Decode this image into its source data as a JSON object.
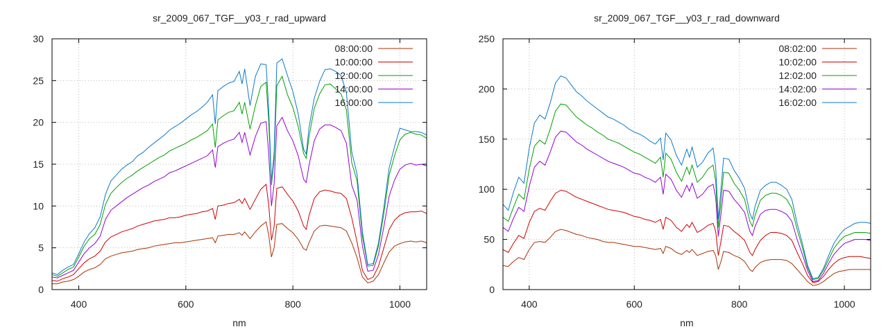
{
  "chart_data": [
    {
      "type": "line",
      "title": "sr_2009_067_TGF__y03_r_rad_upward",
      "xlabel": "nm",
      "ylabel": "",
      "xlim": [
        350,
        1050
      ],
      "ylim": [
        0,
        30
      ],
      "xticks": [
        400,
        600,
        800,
        1000
      ],
      "yticks": [
        0,
        5,
        10,
        15,
        20,
        25,
        30
      ],
      "grid": true,
      "legend_position": "top-right",
      "x": [
        350,
        360,
        370,
        380,
        390,
        400,
        410,
        420,
        430,
        440,
        450,
        460,
        470,
        480,
        490,
        500,
        510,
        520,
        530,
        540,
        550,
        560,
        570,
        580,
        590,
        600,
        610,
        620,
        630,
        640,
        650,
        655,
        660,
        670,
        680,
        690,
        700,
        705,
        710,
        720,
        730,
        740,
        750,
        755,
        760,
        765,
        770,
        780,
        790,
        800,
        810,
        820,
        825,
        830,
        840,
        850,
        860,
        870,
        880,
        890,
        900,
        910,
        920,
        930,
        940,
        950,
        960,
        970,
        980,
        990,
        1000,
        1010,
        1020,
        1030,
        1040,
        1050
      ],
      "series": [
        {
          "name": "08:00:00",
          "color": "#a83200",
          "values": [
            0.7,
            0.7,
            0.9,
            1.0,
            1.2,
            1.6,
            2.1,
            2.4,
            2.6,
            3.0,
            3.7,
            4.0,
            4.2,
            4.4,
            4.5,
            4.6,
            4.8,
            4.9,
            5.0,
            5.2,
            5.3,
            5.4,
            5.5,
            5.6,
            5.6,
            5.7,
            5.8,
            5.9,
            6.0,
            6.1,
            6.2,
            5.6,
            6.4,
            6.5,
            6.6,
            6.6,
            6.8,
            6.5,
            6.9,
            6.1,
            6.9,
            7.6,
            8.1,
            6.5,
            3.9,
            5.0,
            7.8,
            7.9,
            7.3,
            6.8,
            6.0,
            4.9,
            4.7,
            5.6,
            7.0,
            7.6,
            7.7,
            7.6,
            7.5,
            7.4,
            7.0,
            5.6,
            3.8,
            1.5,
            0.8,
            1.0,
            1.8,
            3.2,
            4.5,
            5.2,
            5.5,
            5.7,
            5.8,
            5.7,
            5.8,
            5.6
          ]
        },
        {
          "name": "10:00:00",
          "color": "#cc0000",
          "values": [
            1.1,
            1.0,
            1.3,
            1.5,
            1.8,
            2.5,
            3.2,
            3.7,
            4.0,
            4.6,
            5.7,
            6.3,
            6.6,
            6.9,
            7.1,
            7.3,
            7.6,
            7.8,
            8.0,
            8.2,
            8.3,
            8.4,
            8.6,
            8.6,
            8.7,
            8.9,
            9.0,
            9.1,
            9.3,
            9.4,
            9.7,
            8.4,
            10.0,
            10.1,
            10.3,
            10.4,
            10.8,
            10.3,
            10.9,
            9.6,
            10.8,
            12.0,
            12.6,
            10.1,
            5.9,
            7.5,
            12.1,
            12.3,
            11.4,
            10.6,
            9.4,
            7.6,
            7.2,
            8.8,
            10.9,
            11.7,
            11.9,
            11.8,
            11.6,
            11.5,
            10.9,
            8.6,
            5.7,
            2.3,
            1.2,
            1.5,
            2.8,
            5.0,
            7.2,
            8.3,
            8.9,
            9.2,
            9.3,
            9.3,
            9.4,
            9.1
          ]
        },
        {
          "name": "12:00:00",
          "color": "#00a000",
          "values": [
            1.8,
            1.6,
            2.0,
            2.4,
            2.7,
            3.9,
            5.2,
            6.1,
            6.6,
            7.8,
            10.2,
            11.5,
            12.2,
            12.8,
            13.3,
            13.7,
            14.2,
            14.6,
            15.0,
            15.4,
            15.8,
            16.1,
            16.6,
            16.9,
            17.2,
            17.5,
            17.9,
            18.2,
            18.6,
            19.0,
            19.8,
            17.0,
            20.3,
            20.8,
            21.2,
            21.4,
            22.4,
            21.0,
            22.4,
            19.2,
            22.0,
            24.3,
            24.8,
            20.0,
            12.5,
            15.6,
            24.4,
            25.5,
            23.3,
            21.8,
            19.5,
            16.3,
            15.7,
            18.2,
            21.7,
            23.4,
            24.5,
            24.6,
            24.0,
            23.4,
            21.5,
            15.2,
            13.0,
            6.4,
            2.8,
            2.9,
            5.2,
            9.1,
            13.7,
            16.0,
            17.9,
            18.6,
            18.8,
            18.6,
            18.5,
            18.1
          ]
        },
        {
          "name": "14:00:00",
          "color": "#9400d3",
          "values": [
            1.5,
            1.4,
            1.7,
            2.0,
            2.3,
            3.3,
            4.3,
            5.0,
            5.5,
            6.4,
            8.4,
            9.5,
            10.0,
            10.5,
            11.0,
            11.4,
            11.8,
            12.2,
            12.5,
            12.9,
            13.2,
            13.5,
            14.0,
            14.2,
            14.5,
            14.8,
            15.1,
            15.4,
            15.7,
            16.0,
            16.7,
            14.6,
            17.1,
            17.5,
            17.8,
            18.0,
            18.8,
            17.6,
            18.8,
            16.1,
            18.3,
            19.9,
            20.1,
            16.2,
            10.0,
            12.6,
            19.6,
            20.6,
            19.0,
            17.8,
            16.0,
            13.2,
            12.8,
            14.8,
            17.8,
            19.2,
            19.7,
            19.7,
            19.4,
            19.0,
            17.5,
            12.5,
            10.7,
            5.2,
            2.2,
            2.3,
            4.2,
            7.5,
            11.2,
            13.1,
            14.4,
            14.9,
            15.1,
            14.9,
            15.0,
            14.8
          ]
        },
        {
          "name": "16:00:00",
          "color": "#0a78c8",
          "values": [
            2.0,
            1.8,
            2.3,
            2.7,
            3.0,
            4.3,
            5.7,
            6.7,
            7.4,
            8.7,
            11.4,
            13.0,
            13.7,
            14.4,
            14.9,
            15.3,
            16.0,
            16.4,
            17.0,
            17.5,
            18.0,
            18.5,
            19.1,
            19.5,
            19.9,
            20.4,
            20.9,
            21.3,
            21.8,
            22.4,
            23.3,
            19.8,
            23.8,
            24.3,
            24.7,
            24.9,
            26.1,
            24.6,
            26.4,
            22.0,
            25.5,
            27.0,
            26.9,
            21.5,
            12.8,
            16.4,
            27.1,
            27.6,
            25.6,
            23.7,
            21.0,
            16.8,
            16.2,
            19.3,
            22.9,
            24.9,
            26.3,
            26.4,
            26.1,
            25.6,
            23.6,
            16.5,
            13.8,
            6.9,
            3.0,
            3.1,
            5.6,
            9.8,
            14.6,
            17.1,
            19.3,
            19.1,
            18.9,
            18.9,
            18.8,
            18.5
          ]
        }
      ]
    },
    {
      "type": "line",
      "title": "sr_2009_067_TGF__y03_r_rad_downward",
      "xlabel": "nm",
      "ylabel": "",
      "xlim": [
        350,
        1050
      ],
      "ylim": [
        0,
        250
      ],
      "xticks": [
        400,
        600,
        800,
        1000
      ],
      "yticks": [
        0,
        50,
        100,
        150,
        200,
        250
      ],
      "grid": true,
      "legend_position": "top-right",
      "x": [
        350,
        360,
        370,
        380,
        390,
        400,
        410,
        420,
        430,
        440,
        450,
        460,
        470,
        480,
        490,
        500,
        510,
        520,
        530,
        540,
        550,
        560,
        570,
        580,
        590,
        600,
        610,
        620,
        630,
        640,
        650,
        655,
        660,
        670,
        680,
        690,
        700,
        705,
        710,
        720,
        730,
        740,
        750,
        755,
        760,
        765,
        770,
        780,
        790,
        800,
        810,
        820,
        825,
        830,
        840,
        850,
        860,
        870,
        880,
        890,
        900,
        910,
        920,
        930,
        940,
        950,
        960,
        970,
        980,
        990,
        1000,
        1010,
        1020,
        1030,
        1040,
        1050
      ],
      "series": [
        {
          "name": "08:02:00",
          "color": "#a83200",
          "values": [
            24,
            23,
            28,
            32,
            30,
            40,
            47,
            48,
            47,
            52,
            58,
            60,
            59,
            57,
            55,
            54,
            52,
            51,
            50,
            48,
            47,
            47,
            46,
            45,
            44,
            43,
            43,
            42,
            41,
            40,
            41,
            36,
            43,
            41,
            37,
            35,
            39,
            37,
            40,
            34,
            36,
            38,
            39,
            34,
            20,
            28,
            38,
            37,
            34,
            32,
            28,
            20,
            18,
            22,
            27,
            29,
            30,
            30,
            30,
            29,
            26,
            20,
            14,
            8,
            4,
            5,
            8,
            12,
            16,
            18,
            19,
            20,
            20,
            20,
            20,
            20
          ]
        },
        {
          "name": "10:02:00",
          "color": "#cc0000",
          "values": [
            40,
            37,
            46,
            54,
            51,
            67,
            78,
            81,
            79,
            88,
            96,
            99,
            98,
            95,
            92,
            90,
            88,
            86,
            84,
            82,
            80,
            79,
            78,
            77,
            75,
            73,
            72,
            70,
            69,
            67,
            70,
            60,
            72,
            69,
            62,
            58,
            65,
            62,
            67,
            57,
            60,
            64,
            66,
            58,
            34,
            48,
            64,
            63,
            58,
            54,
            49,
            37,
            34,
            40,
            49,
            54,
            57,
            57,
            56,
            54,
            49,
            37,
            26,
            14,
            7,
            8,
            13,
            20,
            26,
            30,
            32,
            33,
            33,
            33,
            32,
            31
          ]
        },
        {
          "name": "12:02:00",
          "color": "#00a000",
          "values": [
            72,
            68,
            82,
            95,
            90,
            120,
            143,
            149,
            145,
            160,
            178,
            185,
            184,
            178,
            172,
            168,
            164,
            161,
            157,
            154,
            150,
            148,
            146,
            143,
            140,
            137,
            135,
            132,
            129,
            126,
            132,
            112,
            136,
            130,
            117,
            108,
            122,
            115,
            124,
            107,
            112,
            120,
            124,
            108,
            62,
            88,
            117,
            116,
            106,
            99,
            90,
            68,
            63,
            74,
            89,
            94,
            96,
            96,
            94,
            90,
            81,
            60,
            42,
            22,
            10,
            11,
            19,
            30,
            41,
            48,
            53,
            55,
            57,
            57,
            57,
            56
          ]
        },
        {
          "name": "14:02:00",
          "color": "#9400d3",
          "values": [
            62,
            58,
            71,
            82,
            78,
            103,
            122,
            128,
            124,
            137,
            152,
            158,
            157,
            152,
            147,
            144,
            140,
            137,
            134,
            131,
            128,
            126,
            124,
            122,
            119,
            116,
            115,
            112,
            110,
            107,
            112,
            95,
            115,
            110,
            99,
            92,
            104,
            98,
            106,
            91,
            95,
            102,
            105,
            92,
            53,
            75,
            99,
            98,
            90,
            84,
            77,
            58,
            54,
            63,
            75,
            79,
            80,
            80,
            78,
            75,
            68,
            50,
            35,
            19,
            8,
            9,
            16,
            26,
            35,
            41,
            46,
            48,
            50,
            50,
            50,
            49
          ]
        },
        {
          "name": "16:02:00",
          "color": "#0a78c8",
          "values": [
            85,
            79,
            97,
            112,
            106,
            141,
            166,
            174,
            170,
            186,
            206,
            213,
            211,
            204,
            197,
            193,
            188,
            184,
            180,
            176,
            172,
            170,
            167,
            164,
            160,
            157,
            155,
            152,
            148,
            145,
            151,
            129,
            156,
            149,
            134,
            124,
            140,
            132,
            142,
            122,
            127,
            136,
            141,
            122,
            70,
            100,
            131,
            130,
            119,
            111,
            101,
            76,
            70,
            83,
            99,
            104,
            107,
            107,
            104,
            100,
            90,
            66,
            46,
            24,
            11,
            12,
            21,
            34,
            46,
            54,
            60,
            63,
            66,
            67,
            67,
            66
          ]
        }
      ]
    }
  ]
}
